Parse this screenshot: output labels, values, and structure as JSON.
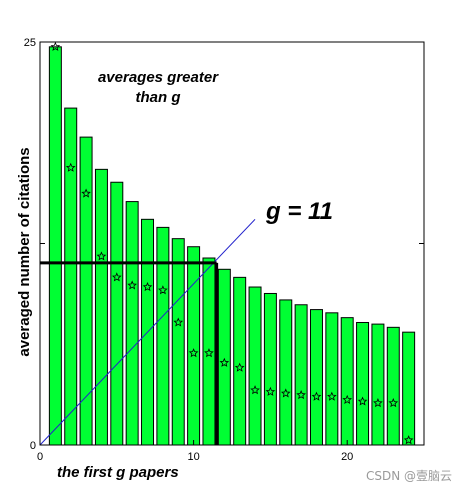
{
  "chart_data": {
    "type": "bar",
    "xlabel": "the first g papers",
    "ylabel": "averaged number of citations",
    "xlim": [
      0,
      25
    ],
    "ylim": [
      0,
      25
    ],
    "x_ticks": [
      0,
      10,
      20
    ],
    "y_ticks": [
      0,
      25
    ],
    "series": [
      {
        "type": "bar",
        "x": [
          1,
          2,
          3,
          4,
          5,
          6,
          7,
          8,
          9,
          10,
          11,
          12,
          13,
          14,
          15,
          16,
          17,
          18,
          19,
          20,
          21,
          22,
          23,
          24
        ],
        "values": [
          24.7,
          20.9,
          19.1,
          17.1,
          16.3,
          15.1,
          14.0,
          13.5,
          12.8,
          12.3,
          11.6,
          10.9,
          10.4,
          9.8,
          9.4,
          9.0,
          8.7,
          8.4,
          8.2,
          7.9,
          7.6,
          7.5,
          7.3,
          7.0
        ],
        "color": "#00ff33"
      },
      {
        "type": "scatter",
        "marker": "star",
        "x": [
          1,
          2,
          3,
          4,
          5,
          6,
          7,
          8,
          9,
          10,
          11,
          12,
          13,
          14,
          15,
          16,
          17,
          18,
          19,
          20,
          21,
          22,
          23,
          24
        ],
        "values": [
          24.7,
          17.2,
          15.6,
          11.7,
          10.4,
          9.9,
          9.8,
          9.6,
          7.6,
          5.7,
          5.7,
          5.1,
          4.8,
          3.4,
          3.3,
          3.2,
          3.1,
          3.0,
          3.0,
          2.8,
          2.7,
          2.6,
          2.6,
          0.3
        ]
      },
      {
        "type": "line",
        "x": [
          0,
          14
        ],
        "values": [
          0,
          14
        ]
      }
    ],
    "guide": {
      "g": 11,
      "value": 11.3
    },
    "annotations": {
      "averages": [
        "averages greater",
        "than  g"
      ],
      "g_label": "g = 11"
    }
  },
  "watermark": "CSDN @壹脑云"
}
